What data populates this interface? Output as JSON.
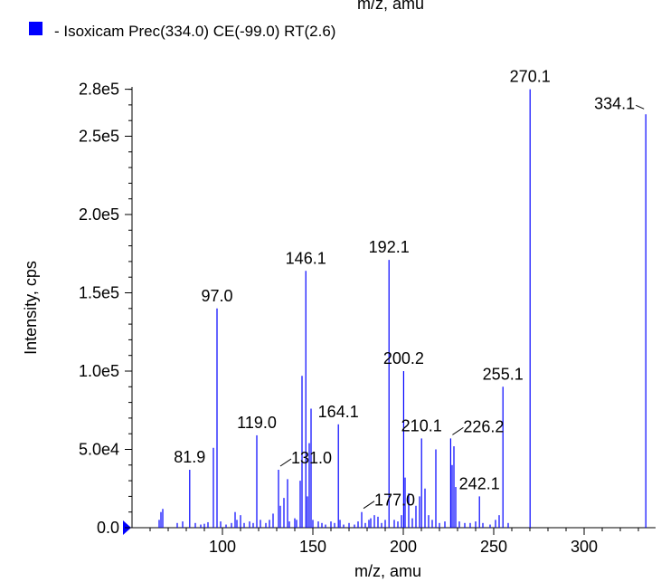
{
  "header": {
    "top_clipped_label": "m/z, amu",
    "legend_text": "- Isoxicam Prec(334.0) CE(-99.0) RT(2.6)",
    "legend_color": "#0000ff"
  },
  "chart_data": {
    "type": "bar",
    "title": "",
    "xlabel": "m/z, amu",
    "ylabel": "Intensity, cps",
    "xlim": [
      50,
      340
    ],
    "ylim": [
      0,
      285000
    ],
    "x_ticks": [
      100,
      150,
      200,
      250,
      300
    ],
    "x_tick_labels": [
      "100",
      "150",
      "200",
      "250",
      "300"
    ],
    "y_ticks": [
      0,
      50000,
      100000,
      150000,
      200000,
      250000,
      280000
    ],
    "y_tick_labels": [
      "0.0",
      "5.0e4",
      "1.0e5",
      "1.5e5",
      "2.0e5",
      "2.5e5",
      "2.8e5"
    ],
    "grid": false,
    "series_color": "#0000ff",
    "peaks": [
      {
        "x": 65,
        "y": 5000
      },
      {
        "x": 66,
        "y": 10000
      },
      {
        "x": 67,
        "y": 12000
      },
      {
        "x": 75,
        "y": 3000
      },
      {
        "x": 78,
        "y": 4000
      },
      {
        "x": 81.9,
        "y": 37000
      },
      {
        "x": 85,
        "y": 3000
      },
      {
        "x": 88,
        "y": 2000
      },
      {
        "x": 90,
        "y": 2500
      },
      {
        "x": 92,
        "y": 3500
      },
      {
        "x": 95,
        "y": 51000
      },
      {
        "x": 97.0,
        "y": 140000
      },
      {
        "x": 99,
        "y": 4000
      },
      {
        "x": 102,
        "y": 2000
      },
      {
        "x": 105,
        "y": 3000
      },
      {
        "x": 107,
        "y": 10000
      },
      {
        "x": 108,
        "y": 5000
      },
      {
        "x": 110,
        "y": 8000
      },
      {
        "x": 112,
        "y": 3000
      },
      {
        "x": 115,
        "y": 4000
      },
      {
        "x": 117,
        "y": 3000
      },
      {
        "x": 119.0,
        "y": 59000
      },
      {
        "x": 121,
        "y": 5000
      },
      {
        "x": 124,
        "y": 3000
      },
      {
        "x": 126,
        "y": 5000
      },
      {
        "x": 128,
        "y": 9000
      },
      {
        "x": 131.0,
        "y": 37000
      },
      {
        "x": 132,
        "y": 14000
      },
      {
        "x": 134,
        "y": 19000
      },
      {
        "x": 136,
        "y": 31000
      },
      {
        "x": 137,
        "y": 4000
      },
      {
        "x": 140,
        "y": 6000
      },
      {
        "x": 141,
        "y": 5000
      },
      {
        "x": 143,
        "y": 30000
      },
      {
        "x": 144,
        "y": 97000
      },
      {
        "x": 146.1,
        "y": 164000
      },
      {
        "x": 147,
        "y": 20000
      },
      {
        "x": 148,
        "y": 54000
      },
      {
        "x": 149,
        "y": 76000
      },
      {
        "x": 150,
        "y": 5000
      },
      {
        "x": 153,
        "y": 4000
      },
      {
        "x": 155,
        "y": 3000
      },
      {
        "x": 157,
        "y": 2000
      },
      {
        "x": 160,
        "y": 4000
      },
      {
        "x": 162,
        "y": 3000
      },
      {
        "x": 164.1,
        "y": 66000
      },
      {
        "x": 165,
        "y": 5000
      },
      {
        "x": 167,
        "y": 2000
      },
      {
        "x": 170,
        "y": 3000
      },
      {
        "x": 173,
        "y": 2000
      },
      {
        "x": 175,
        "y": 4000
      },
      {
        "x": 177.0,
        "y": 10000
      },
      {
        "x": 179,
        "y": 3000
      },
      {
        "x": 181,
        "y": 5000
      },
      {
        "x": 182,
        "y": 6000
      },
      {
        "x": 184,
        "y": 8000
      },
      {
        "x": 186,
        "y": 7000
      },
      {
        "x": 188,
        "y": 3000
      },
      {
        "x": 190,
        "y": 5000
      },
      {
        "x": 192.1,
        "y": 171000
      },
      {
        "x": 195,
        "y": 5000
      },
      {
        "x": 197,
        "y": 4000
      },
      {
        "x": 199,
        "y": 8000
      },
      {
        "x": 200.2,
        "y": 100000
      },
      {
        "x": 201,
        "y": 32000
      },
      {
        "x": 203,
        "y": 22000
      },
      {
        "x": 205,
        "y": 6000
      },
      {
        "x": 207,
        "y": 14000
      },
      {
        "x": 209,
        "y": 20000
      },
      {
        "x": 210.1,
        "y": 57000
      },
      {
        "x": 212,
        "y": 25000
      },
      {
        "x": 214,
        "y": 8000
      },
      {
        "x": 216,
        "y": 5000
      },
      {
        "x": 218,
        "y": 50000
      },
      {
        "x": 220,
        "y": 3000
      },
      {
        "x": 223,
        "y": 4000
      },
      {
        "x": 226.2,
        "y": 57000
      },
      {
        "x": 227,
        "y": 40000
      },
      {
        "x": 228,
        "y": 52000
      },
      {
        "x": 229,
        "y": 26000
      },
      {
        "x": 231,
        "y": 4000
      },
      {
        "x": 234,
        "y": 3000
      },
      {
        "x": 237,
        "y": 3000
      },
      {
        "x": 240,
        "y": 4000
      },
      {
        "x": 242.1,
        "y": 20000
      },
      {
        "x": 244,
        "y": 3000
      },
      {
        "x": 248,
        "y": 2000
      },
      {
        "x": 251,
        "y": 5000
      },
      {
        "x": 253,
        "y": 8000
      },
      {
        "x": 255.1,
        "y": 90000
      },
      {
        "x": 258,
        "y": 3000
      },
      {
        "x": 270.1,
        "y": 280000
      },
      {
        "x": 334.1,
        "y": 264000
      }
    ],
    "peak_labels": [
      {
        "x": 81.9,
        "y": 37000,
        "text": "81.9",
        "leader": false
      },
      {
        "x": 97.0,
        "y": 140000,
        "text": "97.0",
        "leader": false
      },
      {
        "x": 119.0,
        "y": 59000,
        "text": "119.0",
        "leader": false
      },
      {
        "x": 131.0,
        "y": 37000,
        "text": "131.0",
        "leader": true
      },
      {
        "x": 146.1,
        "y": 164000,
        "text": "146.1",
        "leader": false
      },
      {
        "x": 164.1,
        "y": 66000,
        "text": "164.1",
        "leader": false
      },
      {
        "x": 177.0,
        "y": 10000,
        "text": "177.0",
        "leader": true
      },
      {
        "x": 192.1,
        "y": 171000,
        "text": "192.1",
        "leader": false
      },
      {
        "x": 200.2,
        "y": 100000,
        "text": "200.2",
        "leader": false
      },
      {
        "x": 210.1,
        "y": 57000,
        "text": "210.1",
        "leader": false
      },
      {
        "x": 226.2,
        "y": 57000,
        "text": "226.2",
        "leader": true
      },
      {
        "x": 242.1,
        "y": 20000,
        "text": "242.1",
        "leader": false
      },
      {
        "x": 255.1,
        "y": 90000,
        "text": "255.1",
        "leader": false
      },
      {
        "x": 270.1,
        "y": 280000,
        "text": "270.1",
        "leader": false
      },
      {
        "x": 334.1,
        "y": 264000,
        "text": "334.1",
        "leader": true
      }
    ]
  }
}
